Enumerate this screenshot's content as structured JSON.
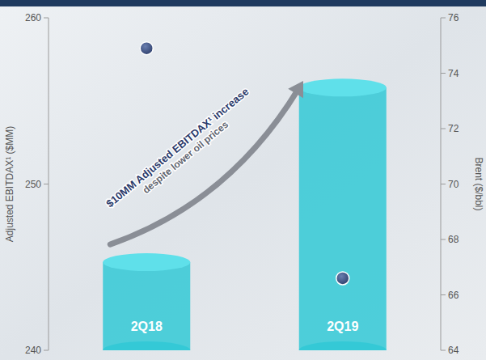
{
  "chart_data": {
    "type": "bar",
    "categories": [
      "2Q18",
      "2Q19"
    ],
    "ylabel": "Adjusted EBITDAX¹ ($MM)",
    "y2label": "Brent ($/bbl)",
    "annotations": [
      "$10MM Adjusted EBITDAX¹ increase",
      "despite lower oil prices"
    ],
    "series": [
      {
        "type": "bar",
        "color": "#33c9d6",
        "values": [
          245.3,
          255.8
        ]
      },
      {
        "type": "scatter",
        "axis": "y2",
        "marker": "circle",
        "color": "#2d3e6b",
        "values": [
          74.9,
          66.6
        ]
      }
    ],
    "ylim": [
      240,
      260
    ],
    "yticks": [
      240,
      250,
      260
    ],
    "y2lim": [
      64,
      76
    ],
    "y2ticks": [
      64,
      66,
      68,
      70,
      72,
      74,
      76
    ],
    "grid": false
  }
}
